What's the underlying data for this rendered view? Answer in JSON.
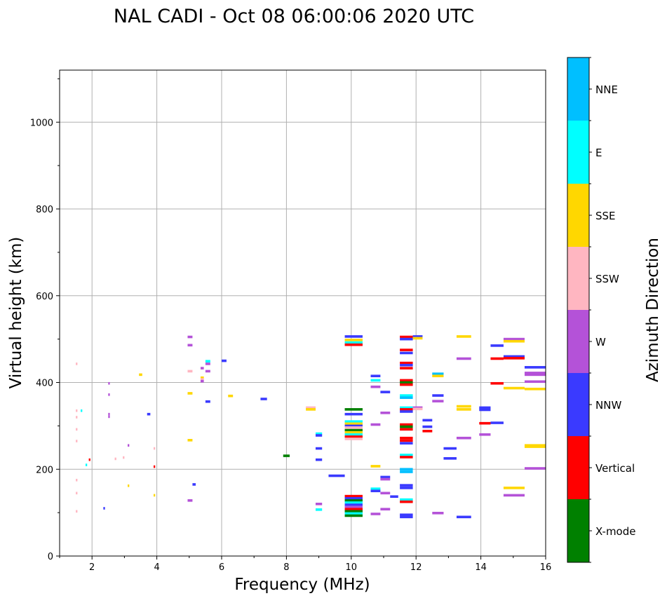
{
  "chart_data": {
    "type": "scatter",
    "title": "NAL CADI - Oct 08 06:00:06 2020 UTC",
    "xlabel": "Frequency (MHz)",
    "ylabel": "Virtual height (km)",
    "xlim": [
      1,
      16
    ],
    "ylim": [
      0,
      1120
    ],
    "xticks": [
      2,
      4,
      6,
      8,
      10,
      12,
      14,
      16
    ],
    "yticks": [
      0,
      200,
      400,
      600,
      800,
      1000
    ],
    "grid": true,
    "colorbar": {
      "label": "Azimuth Direction",
      "categories": [
        "X-mode",
        "Vertical",
        "NNW",
        "W",
        "SSW",
        "SSE",
        "E",
        "NNE"
      ],
      "colors": {
        "X-mode": "#008000",
        "Vertical": "#ff0000",
        "NNW": "#3a3aff",
        "W": "#b452d8",
        "SSW": "#ffb6c1",
        "SSE": "#ffd700",
        "E": "#00ffff",
        "NNE": "#00bfff"
      }
    },
    "echoes": [
      [
        1.5,
        443,
        1.55,
        "SSW"
      ],
      [
        1.5,
        335,
        1.55,
        "SSW"
      ],
      [
        1.5,
        320,
        1.55,
        "SSW"
      ],
      [
        1.5,
        292,
        1.55,
        "SSW"
      ],
      [
        1.5,
        265,
        1.55,
        "SSW"
      ],
      [
        1.5,
        175,
        1.55,
        "SSW"
      ],
      [
        1.5,
        145,
        1.55,
        "SSW"
      ],
      [
        1.5,
        103,
        1.55,
        "SSW"
      ],
      [
        1.65,
        335,
        1.7,
        "E"
      ],
      [
        1.8,
        210,
        1.85,
        "E"
      ],
      [
        1.9,
        222,
        1.95,
        "Vertical"
      ],
      [
        2.35,
        110,
        2.4,
        "NNW"
      ],
      [
        2.5,
        398,
        2.55,
        "W"
      ],
      [
        2.5,
        372,
        2.55,
        "W"
      ],
      [
        2.5,
        327,
        2.55,
        "W"
      ],
      [
        2.5,
        321,
        2.55,
        "W"
      ],
      [
        2.7,
        224,
        2.75,
        "SSW"
      ],
      [
        2.95,
        227,
        3.0,
        "SSW"
      ],
      [
        3.1,
        255,
        3.15,
        "W"
      ],
      [
        3.1,
        162,
        3.15,
        "SSE"
      ],
      [
        3.45,
        418,
        3.55,
        "SSE"
      ],
      [
        3.7,
        327,
        3.8,
        "NNW"
      ],
      [
        3.9,
        248,
        3.95,
        "SSW"
      ],
      [
        3.9,
        206,
        3.95,
        "Vertical"
      ],
      [
        3.9,
        140,
        3.95,
        "SSE"
      ],
      [
        4.95,
        505,
        5.1,
        "W"
      ],
      [
        4.95,
        486,
        5.1,
        "W"
      ],
      [
        4.95,
        426,
        5.1,
        "SSW"
      ],
      [
        4.95,
        375,
        5.1,
        "SSE"
      ],
      [
        4.95,
        267,
        5.1,
        "SSE"
      ],
      [
        4.95,
        128,
        5.1,
        "W"
      ],
      [
        5.1,
        165,
        5.2,
        "NNW"
      ],
      [
        5.35,
        433,
        5.45,
        "W"
      ],
      [
        5.35,
        411,
        5.45,
        "SSE"
      ],
      [
        5.35,
        407,
        5.45,
        "SSW"
      ],
      [
        5.35,
        403,
        5.45,
        "W"
      ],
      [
        5.5,
        449,
        5.65,
        "E"
      ],
      [
        5.5,
        443,
        5.65,
        "W"
      ],
      [
        5.5,
        426,
        5.65,
        "W"
      ],
      [
        5.5,
        356,
        5.65,
        "NNW"
      ],
      [
        6.0,
        450,
        6.15,
        "NNW"
      ],
      [
        6.2,
        369,
        6.35,
        "SSE"
      ],
      [
        7.2,
        362,
        7.4,
        "NNW"
      ],
      [
        7.9,
        231,
        8.1,
        "X-mode"
      ],
      [
        8.6,
        342,
        8.9,
        "SSW"
      ],
      [
        8.6,
        338,
        8.9,
        "SSE"
      ],
      [
        8.9,
        282,
        9.1,
        "E"
      ],
      [
        8.9,
        278,
        9.1,
        "NNW"
      ],
      [
        8.9,
        248,
        9.1,
        "NNW"
      ],
      [
        8.9,
        222,
        9.1,
        "NNW"
      ],
      [
        8.9,
        120,
        9.1,
        "W"
      ],
      [
        8.9,
        107,
        9.1,
        "E"
      ],
      [
        9.3,
        185,
        9.8,
        "NNW"
      ],
      [
        9.8,
        506,
        10.35,
        "NNW"
      ],
      [
        9.8,
        498,
        10.35,
        "SSE"
      ],
      [
        9.8,
        492,
        10.35,
        "E"
      ],
      [
        9.8,
        487,
        10.35,
        "Vertical"
      ],
      [
        9.8,
        338,
        10.35,
        "X-mode"
      ],
      [
        9.8,
        327,
        10.35,
        "NNW"
      ],
      [
        9.8,
        310,
        10.35,
        "E"
      ],
      [
        9.8,
        305,
        10.35,
        "SSE"
      ],
      [
        9.8,
        300,
        10.35,
        "NNW"
      ],
      [
        9.8,
        296,
        10.35,
        "SSW"
      ],
      [
        9.8,
        290,
        10.35,
        "X-mode"
      ],
      [
        9.8,
        285,
        10.35,
        "SSE"
      ],
      [
        9.8,
        280,
        10.35,
        "E"
      ],
      [
        9.8,
        275,
        10.35,
        "Vertical"
      ],
      [
        9.8,
        270,
        10.35,
        "SSW"
      ],
      [
        9.8,
        138,
        10.35,
        "Vertical"
      ],
      [
        9.8,
        133,
        10.35,
        "NNW"
      ],
      [
        9.8,
        128,
        10.35,
        "X-mode"
      ],
      [
        9.8,
        123,
        10.35,
        "E"
      ],
      [
        9.8,
        118,
        10.35,
        "NNW"
      ],
      [
        9.8,
        113,
        10.35,
        "W"
      ],
      [
        9.8,
        108,
        10.35,
        "Vertical"
      ],
      [
        9.8,
        103,
        10.35,
        "X-mode"
      ],
      [
        9.8,
        98,
        10.35,
        "E"
      ],
      [
        9.8,
        93,
        10.35,
        "X-mode"
      ],
      [
        10.6,
        415,
        10.9,
        "NNW"
      ],
      [
        10.6,
        405,
        10.9,
        "E"
      ],
      [
        10.6,
        390,
        10.9,
        "W"
      ],
      [
        10.6,
        303,
        10.9,
        "W"
      ],
      [
        10.6,
        207,
        10.9,
        "SSE"
      ],
      [
        10.6,
        155,
        10.9,
        "E"
      ],
      [
        10.6,
        150,
        10.9,
        "NNW"
      ],
      [
        10.6,
        97,
        10.9,
        "W"
      ],
      [
        10.9,
        378,
        11.2,
        "NNW"
      ],
      [
        10.9,
        330,
        11.2,
        "W"
      ],
      [
        10.9,
        182,
        11.2,
        "NNW"
      ],
      [
        10.9,
        177,
        11.2,
        "W"
      ],
      [
        10.9,
        145,
        11.2,
        "W"
      ],
      [
        10.9,
        108,
        11.2,
        "W"
      ],
      [
        11.2,
        137,
        11.45,
        "NNW"
      ],
      [
        11.5,
        505,
        11.9,
        "Vertical"
      ],
      [
        11.5,
        500,
        11.9,
        "NNW"
      ],
      [
        11.5,
        475,
        11.9,
        "Vertical"
      ],
      [
        11.5,
        468,
        11.9,
        "NNW"
      ],
      [
        11.5,
        445,
        11.9,
        "Vertical"
      ],
      [
        11.5,
        440,
        11.9,
        "NNW"
      ],
      [
        11.5,
        433,
        11.9,
        "Vertical"
      ],
      [
        11.5,
        405,
        11.9,
        "Vertical"
      ],
      [
        11.5,
        400,
        11.9,
        "X-mode"
      ],
      [
        11.5,
        395,
        11.9,
        "Vertical"
      ],
      [
        11.5,
        370,
        11.9,
        "E"
      ],
      [
        11.5,
        365,
        11.9,
        "NNE"
      ],
      [
        11.5,
        342,
        11.9,
        "E"
      ],
      [
        11.5,
        338,
        11.9,
        "Vertical"
      ],
      [
        11.5,
        333,
        11.9,
        "NNW"
      ],
      [
        11.5,
        303,
        11.9,
        "Vertical"
      ],
      [
        11.5,
        298,
        11.9,
        "X-mode"
      ],
      [
        11.5,
        292,
        11.9,
        "Vertical"
      ],
      [
        11.5,
        272,
        11.9,
        "Vertical"
      ],
      [
        11.5,
        266,
        11.9,
        "Vertical"
      ],
      [
        11.5,
        260,
        11.9,
        "NNW"
      ],
      [
        11.5,
        233,
        11.9,
        "E"
      ],
      [
        11.5,
        228,
        11.9,
        "Vertical"
      ],
      [
        11.5,
        200,
        11.9,
        "NNE"
      ],
      [
        11.5,
        194,
        11.9,
        "NNE"
      ],
      [
        11.5,
        163,
        11.9,
        "NNW"
      ],
      [
        11.5,
        157,
        11.9,
        "NNW"
      ],
      [
        11.5,
        130,
        11.9,
        "E"
      ],
      [
        11.5,
        125,
        11.9,
        "Vertical"
      ],
      [
        11.5,
        95,
        11.9,
        "NNW"
      ],
      [
        11.5,
        90,
        11.9,
        "NNW"
      ],
      [
        11.9,
        506,
        12.2,
        "NNW"
      ],
      [
        11.9,
        502,
        12.2,
        "SSE"
      ],
      [
        11.9,
        342,
        12.2,
        "W"
      ],
      [
        11.9,
        339,
        12.2,
        "SSW"
      ],
      [
        12.2,
        313,
        12.5,
        "NNW"
      ],
      [
        12.2,
        298,
        12.5,
        "NNW"
      ],
      [
        12.2,
        288,
        12.5,
        "Vertical"
      ],
      [
        12.5,
        420,
        12.85,
        "NNE"
      ],
      [
        12.5,
        415,
        12.85,
        "SSE"
      ],
      [
        12.5,
        370,
        12.85,
        "NNW"
      ],
      [
        12.5,
        357,
        12.85,
        "W"
      ],
      [
        12.5,
        99,
        12.85,
        "W"
      ],
      [
        12.85,
        248,
        13.25,
        "NNW"
      ],
      [
        12.85,
        225,
        13.25,
        "NNW"
      ],
      [
        13.25,
        506,
        13.7,
        "SSE"
      ],
      [
        13.25,
        455,
        13.7,
        "W"
      ],
      [
        13.25,
        345,
        13.7,
        "SSE"
      ],
      [
        13.25,
        338,
        13.7,
        "SSE"
      ],
      [
        13.25,
        272,
        13.7,
        "W"
      ],
      [
        13.25,
        90,
        13.7,
        "NNW"
      ],
      [
        13.95,
        342,
        14.3,
        "NNW"
      ],
      [
        13.95,
        337,
        14.3,
        "NNW"
      ],
      [
        13.95,
        306,
        14.3,
        "Vertical"
      ],
      [
        13.95,
        280,
        14.3,
        "W"
      ],
      [
        14.3,
        307,
        14.7,
        "NNW"
      ],
      [
        14.3,
        485,
        14.7,
        "NNW"
      ],
      [
        14.3,
        455,
        14.7,
        "Vertical"
      ],
      [
        14.3,
        398,
        14.7,
        "Vertical"
      ],
      [
        14.7,
        500,
        15.35,
        "W"
      ],
      [
        14.7,
        495,
        15.35,
        "SSE"
      ],
      [
        14.7,
        460,
        15.35,
        "NNW"
      ],
      [
        14.7,
        456,
        15.35,
        "Vertical"
      ],
      [
        14.7,
        387,
        15.35,
        "SSE"
      ],
      [
        14.7,
        157,
        15.35,
        "SSE"
      ],
      [
        14.7,
        140,
        15.35,
        "W"
      ],
      [
        15.35,
        435,
        16.0,
        "NNW"
      ],
      [
        15.35,
        422,
        16.0,
        "W"
      ],
      [
        15.35,
        418,
        16.0,
        "W"
      ],
      [
        15.35,
        402,
        16.0,
        "W"
      ],
      [
        15.35,
        385,
        16.0,
        "SSE"
      ],
      [
        15.35,
        255,
        16.0,
        "SSE"
      ],
      [
        15.35,
        252,
        16.0,
        "SSE"
      ],
      [
        15.35,
        202,
        16.0,
        "W"
      ]
    ]
  }
}
